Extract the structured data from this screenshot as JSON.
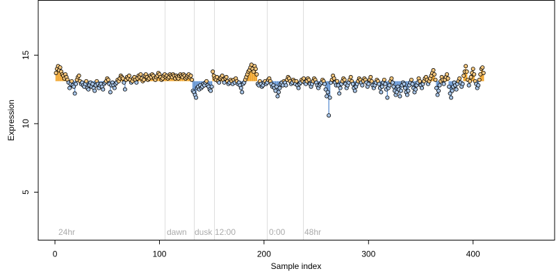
{
  "chart_data": {
    "type": "scatter",
    "title": "",
    "xlabel": "Sample index",
    "ylabel": "Expression",
    "xlim": [
      -16,
      478
    ],
    "ylim": [
      1.5,
      19
    ],
    "xticks": [
      0,
      100,
      200,
      300,
      400
    ],
    "yticks": [
      5,
      10,
      15
    ],
    "baseline": 13.1,
    "colors": {
      "above_fill": "#f5c77e",
      "below_fill": "#a9c6e8",
      "above_stem": "#f0a020",
      "below_stem": "#5b8fd1",
      "guide": "#dddddd",
      "phase_label": "#aaaaaa"
    },
    "phase_markers": [
      {
        "x": 105,
        "label": "dawn"
      },
      {
        "x": 133,
        "label": "dusk"
      },
      {
        "x": 152,
        "label": "12:00"
      },
      {
        "x": 203,
        "label": "0:00"
      },
      {
        "x": 237,
        "label": "48hr"
      }
    ],
    "phase_labels": {
      "start": "24hr",
      "dawn": "dawn",
      "dusk": "dusk",
      "noon": "12:00",
      "midnight": "0:00",
      "end": "48hr"
    },
    "series": [
      {
        "x_start": 1,
        "values": [
          13.7,
          14.0,
          14.2,
          13.9,
          14.1,
          13.8,
          13.6,
          13.5,
          13.3,
          13.6,
          13.4,
          13.2,
          13.0,
          12.6,
          12.9,
          13.1,
          12.8,
          12.7,
          12.2,
          12.9,
          13.2,
          13.4,
          13.5,
          13.1,
          12.9,
          13.0,
          12.8,
          12.7,
          12.9,
          13.1,
          12.6,
          12.5,
          12.8,
          13.0,
          12.7,
          12.9,
          12.6,
          12.4,
          12.8,
          13.1,
          12.9,
          12.6,
          12.8,
          12.9,
          12.7,
          12.5,
          12.9,
          13.0,
          13.1,
          13.3,
          13.2,
          12.9,
          12.3,
          12.8,
          13.0,
          12.8,
          12.6,
          12.9,
          13.0,
          13.2,
          13.1,
          13.3,
          13.5,
          13.4,
          13.3,
          13.0,
          12.5,
          13.2,
          13.4,
          13.3,
          13.5,
          13.2,
          13.0,
          13.1,
          13.3,
          13.4,
          13.2,
          13.0,
          13.3,
          13.5,
          13.4,
          13.6,
          13.3,
          13.1,
          13.2,
          13.5,
          13.6,
          13.4,
          13.2,
          13.3,
          13.5,
          13.4,
          13.6,
          13.5,
          13.3,
          13.2,
          13.4,
          13.5,
          13.7,
          13.6,
          13.4,
          13.2,
          13.3,
          13.5,
          13.6,
          13.4,
          13.5,
          13.3,
          13.4,
          13.6,
          13.5,
          13.4,
          13.6,
          13.5,
          13.3,
          13.5,
          13.4,
          13.3,
          13.5,
          13.6,
          13.5,
          13.4,
          13.6,
          13.5,
          13.3,
          13.4,
          13.5,
          13.6,
          13.4,
          13.5,
          13.2,
          12.4,
          12.3,
          12.1,
          11.9,
          12.6,
          12.7,
          12.5,
          12.8,
          12.6,
          12.7,
          12.9,
          12.8,
          13.0,
          13.1,
          12.8,
          12.7,
          12.5,
          12.4,
          12.7,
          13.8,
          13.5,
          13.3,
          13.2,
          13.4,
          13.1,
          13.0,
          13.3,
          13.4,
          13.5,
          13.2,
          13.0,
          13.3,
          13.4,
          13.1,
          12.9,
          13.0,
          13.2,
          13.1,
          12.9,
          13.2,
          13.0,
          13.3,
          13.1,
          12.9,
          13.0,
          12.8,
          12.6,
          12.3,
          12.9,
          13.0,
          13.2,
          13.4,
          13.6,
          13.8,
          13.9,
          14.1,
          14.3,
          14.0,
          13.8,
          14.2,
          14.0,
          13.6,
          12.9,
          12.8,
          13.1,
          12.9,
          12.7,
          12.8,
          13.0,
          13.1,
          12.9,
          13.0,
          13.2,
          13.3,
          13.1,
          12.9,
          12.7,
          12.8,
          12.6,
          12.4,
          12.7,
          12.0,
          12.3,
          12.6,
          12.9,
          13.0,
          12.8,
          13.1,
          13.0,
          12.8,
          13.2,
          13.4,
          13.3,
          13.1,
          12.9,
          13.0,
          13.2,
          13.1,
          12.9,
          13.1,
          12.8,
          12.6,
          12.9,
          13.0,
          13.2,
          13.1,
          13.3,
          13.0,
          12.9,
          13.1,
          13.3,
          13.2,
          12.9,
          12.7,
          12.9,
          13.1,
          13.3,
          13.2,
          13.0,
          12.8,
          12.6,
          12.8,
          12.9,
          13.0,
          13.2,
          13.1,
          12.9,
          12.5,
          12.0,
          12.3,
          10.6,
          11.9,
          13.0,
          13.2,
          13.5,
          13.3,
          13.0,
          12.8,
          13.1,
          12.8,
          12.2,
          12.6,
          12.9,
          13.1,
          13.3,
          13.2,
          12.9,
          12.6,
          12.8,
          13.0,
          13.2,
          13.4,
          13.1,
          12.9,
          12.6,
          12.4,
          12.7,
          12.9,
          13.1,
          13.3,
          13.2,
          13.0,
          12.8,
          13.1,
          13.3,
          13.2,
          13.0,
          12.7,
          12.9,
          13.2,
          13.4,
          13.1,
          12.8,
          12.6,
          12.8,
          13.0,
          13.2,
          13.1,
          12.9,
          12.6,
          12.3,
          12.7,
          13.0,
          13.2,
          12.9,
          12.5,
          11.9,
          12.6,
          12.8,
          13.1,
          13.3,
          13.0,
          12.7,
          12.4,
          12.1,
          12.3,
          12.7,
          12.5,
          12.0,
          12.4,
          12.8,
          13.0,
          12.9,
          12.6,
          12.3,
          12.1,
          12.4,
          12.8,
          13.0,
          13.2,
          12.9,
          12.6,
          12.3,
          12.5,
          12.8,
          13.0,
          13.3,
          13.1,
          12.8,
          12.6,
          12.9,
          13.1,
          13.3,
          13.4,
          13.2,
          12.9,
          13.1,
          13.3,
          13.5,
          13.7,
          13.9,
          13.6,
          13.2,
          12.6,
          12.1,
          12.4,
          12.8,
          13.1,
          13.4,
          13.2,
          12.9,
          13.2,
          13.4,
          13.6,
          13.3,
          12.7,
          12.2,
          11.9,
          12.4,
          12.7,
          13.0,
          12.8,
          12.5,
          12.9,
          13.1,
          13.3,
          13.0,
          12.7,
          12.9,
          13.5,
          13.8,
          14.2,
          13.8,
          13.2,
          12.8,
          13.1,
          13.4,
          13.7,
          14.0,
          13.6,
          13.1,
          12.9,
          12.6,
          12.8,
          13.2,
          13.6,
          14.0,
          14.1,
          13.7
        ]
      }
    ]
  }
}
